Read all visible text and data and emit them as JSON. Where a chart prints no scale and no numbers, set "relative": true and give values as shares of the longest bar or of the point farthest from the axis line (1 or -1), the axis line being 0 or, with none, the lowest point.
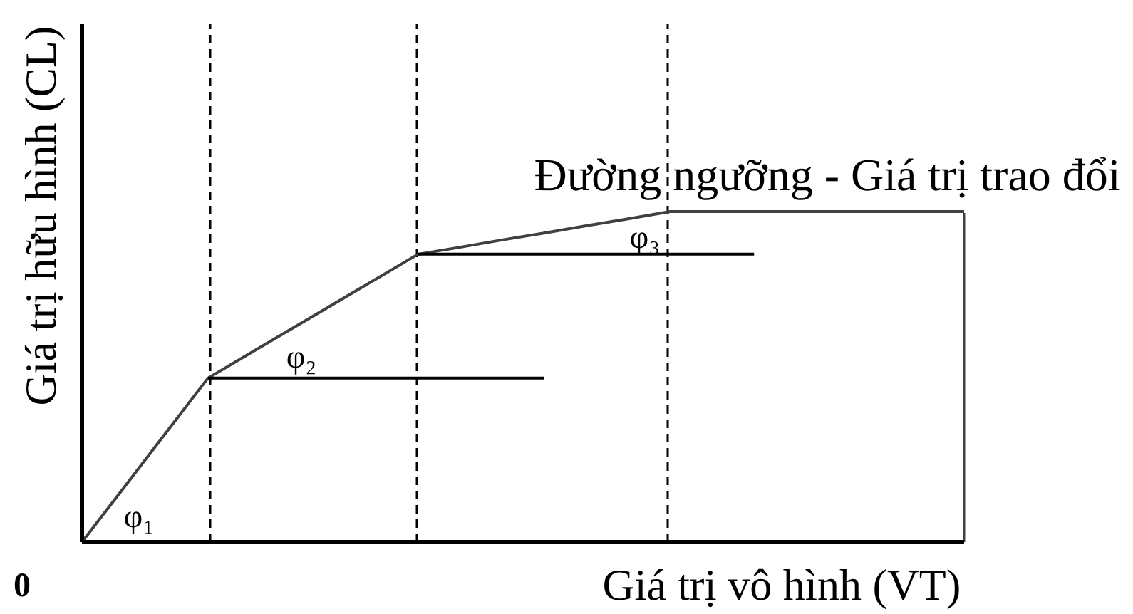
{
  "chart_data": {
    "type": "line",
    "xlabel": "Giá trị vô hình (VT)",
    "ylabel": "Giá trị hữu hình (CL)",
    "relative": true,
    "categories": [
      null,
      null,
      null,
      null,
      null,
      null,
      null,
      null,
      null,
      null,
      null,
      null,
      null,
      null,
      null,
      null,
      null,
      null,
      null,
      null,
      null,
      null
    ],
    "series": [
      {
        "color": "#404040",
        "values": [
          0,
          0.165,
          0.331,
          0.496,
          0.571,
          0.646,
          0.721,
          0.796,
          0.871,
          0.892,
          0.914,
          0.935,
          0.957,
          0.978,
          1,
          1,
          1,
          1,
          1,
          1,
          1,
          1
        ]
      },
      {
        "color": "#000000",
        "values": [
          null,
          null,
          null,
          0.496,
          0.496,
          0.496,
          0.496,
          0.496,
          0.496,
          0.496,
          0.496,
          0.496,
          null,
          null,
          null,
          null,
          null,
          null,
          null,
          null,
          null,
          null
        ]
      },
      {
        "color": "#000000",
        "values": [
          null,
          null,
          null,
          null,
          null,
          null,
          null,
          null,
          0.871,
          0.871,
          0.871,
          0.871,
          0.871,
          0.871,
          0.871,
          0.871,
          0.871,
          null,
          null,
          null,
          null,
          null
        ]
      }
    ],
    "annotations": [
      "φ₁",
      "φ₂",
      "φ₃",
      "Đường ngưỡng - Giá trị trao đổi",
      "0"
    ],
    "line_style": "solid"
  }
}
